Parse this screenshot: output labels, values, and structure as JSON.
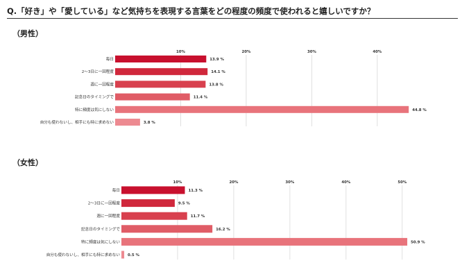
{
  "question": "Q.「好き」や「愛している」など気持ちを表現する言葉をどの程度の頻度で使われると嬉しいですか？",
  "chart_data": [
    {
      "type": "bar",
      "orientation": "horizontal",
      "title": "（男性）",
      "categories": [
        "毎日",
        "2〜3日に一回程度",
        "週に一回程度",
        "記念日のタイミングで",
        "特に頻度は気にしない",
        "自分も使わないし、相手にも特に求めない"
      ],
      "values": [
        13.9,
        14.1,
        13.8,
        11.4,
        44.8,
        3.8
      ],
      "value_labels": [
        "13.9 %",
        "14.1 %",
        "13.8 %",
        "11.4 %",
        "44.8 %",
        "3.8 %"
      ],
      "xticks": [
        10,
        20,
        30,
        40
      ],
      "xtick_labels": [
        "10%",
        "20%",
        "30%",
        "40%"
      ],
      "xlim": [
        0,
        47
      ],
      "grid": true,
      "colors": [
        "#c8102e",
        "#d0283c",
        "#d8404e",
        "#e05c66",
        "#e8737b",
        "#ed8a91"
      ]
    },
    {
      "type": "bar",
      "orientation": "horizontal",
      "title": "（女性）",
      "categories": [
        "毎日",
        "2〜3日に一回程度",
        "週に一回程度",
        "記念日のタイミングで",
        "特に頻度は気にしない",
        "自分も使わないし、相手にも特に求めない"
      ],
      "values": [
        11.3,
        9.5,
        11.7,
        16.2,
        50.9,
        0.5
      ],
      "value_labels": [
        "11.3 %",
        "9.5 %",
        "11.7 %",
        "16.2 %",
        "50.9 %",
        "0.5 %"
      ],
      "xticks": [
        10,
        20,
        30,
        40,
        50
      ],
      "xtick_labels": [
        "10%",
        "20%",
        "30%",
        "40%",
        "50%"
      ],
      "xlim": [
        0,
        52
      ],
      "grid": true,
      "colors": [
        "#c8102e",
        "#d0283c",
        "#d8404e",
        "#e05c66",
        "#e8737b",
        "#ed8a91"
      ]
    }
  ]
}
